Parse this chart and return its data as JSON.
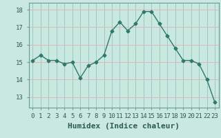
{
  "x": [
    0,
    1,
    2,
    3,
    4,
    5,
    6,
    7,
    8,
    9,
    10,
    11,
    12,
    13,
    14,
    15,
    16,
    17,
    18,
    19,
    20,
    21,
    22,
    23
  ],
  "y": [
    15.1,
    15.4,
    15.1,
    15.1,
    14.9,
    15.0,
    14.1,
    14.8,
    15.0,
    15.4,
    16.8,
    17.3,
    16.8,
    17.2,
    17.9,
    17.9,
    17.2,
    16.5,
    15.8,
    15.1,
    15.1,
    14.9,
    14.0,
    12.7
  ],
  "line_color": "#2d7a6a",
  "marker": "D",
  "marker_size": 2.5,
  "bg_color": "#c8e8e0",
  "grid_color_x": "#a0c8c0",
  "grid_color_y": "#e0b8b8",
  "xlabel": "Humidex (Indice chaleur)",
  "xlabel_fontsize": 8,
  "ylabel_ticks": [
    13,
    14,
    15,
    16,
    17,
    18
  ],
  "xlim": [
    -0.5,
    23.5
  ],
  "ylim": [
    12.4,
    18.4
  ],
  "xticks": [
    0,
    1,
    2,
    3,
    4,
    5,
    6,
    7,
    8,
    9,
    10,
    11,
    12,
    13,
    14,
    15,
    16,
    17,
    18,
    19,
    20,
    21,
    22,
    23
  ],
  "tick_fontsize": 6.5
}
